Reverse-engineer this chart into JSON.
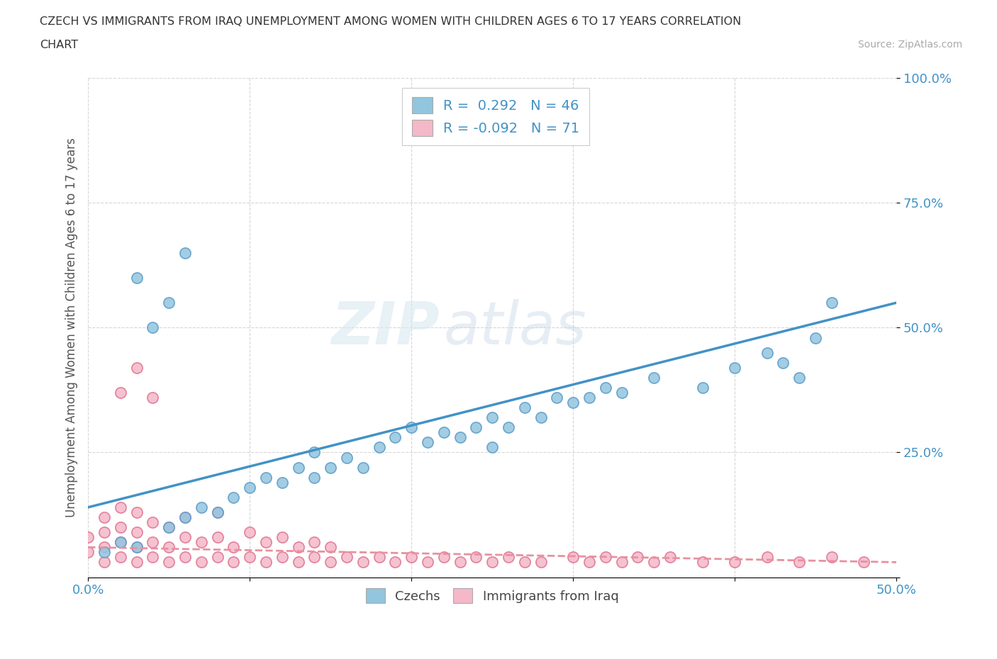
{
  "title_line1": "CZECH VS IMMIGRANTS FROM IRAQ UNEMPLOYMENT AMONG WOMEN WITH CHILDREN AGES 6 TO 17 YEARS CORRELATION",
  "title_line2": "CHART",
  "source_text": "Source: ZipAtlas.com",
  "ylabel": "Unemployment Among Women with Children Ages 6 to 17 years",
  "xlim": [
    0.0,
    0.5
  ],
  "ylim": [
    0.0,
    1.0
  ],
  "legend_r1": "R =  0.292   N = 46",
  "legend_r2": "R = -0.092   N = 71",
  "blue_color": "#92c5de",
  "blue_edge_color": "#5b9bc8",
  "pink_color": "#f4b8c8",
  "pink_edge_color": "#e07090",
  "blue_line_color": "#4292c6",
  "pink_line_color": "#e8919f",
  "watermark_zip": "ZIP",
  "watermark_atlas": "atlas",
  "blue_scatter_x": [
    0.01,
    0.02,
    0.03,
    0.05,
    0.06,
    0.07,
    0.08,
    0.09,
    0.1,
    0.11,
    0.12,
    0.13,
    0.14,
    0.14,
    0.15,
    0.16,
    0.17,
    0.18,
    0.19,
    0.2,
    0.21,
    0.22,
    0.23,
    0.24,
    0.25,
    0.25,
    0.26,
    0.27,
    0.28,
    0.29,
    0.3,
    0.31,
    0.32,
    0.33,
    0.35,
    0.38,
    0.4,
    0.42,
    0.43,
    0.44,
    0.45,
    0.46,
    0.03,
    0.04,
    0.05,
    0.06
  ],
  "blue_scatter_y": [
    0.05,
    0.07,
    0.06,
    0.1,
    0.12,
    0.14,
    0.13,
    0.16,
    0.18,
    0.2,
    0.19,
    0.22,
    0.2,
    0.25,
    0.22,
    0.24,
    0.22,
    0.26,
    0.28,
    0.3,
    0.27,
    0.29,
    0.28,
    0.3,
    0.32,
    0.26,
    0.3,
    0.34,
    0.32,
    0.36,
    0.35,
    0.36,
    0.38,
    0.37,
    0.4,
    0.38,
    0.42,
    0.45,
    0.43,
    0.4,
    0.48,
    0.55,
    0.6,
    0.5,
    0.55,
    0.65
  ],
  "pink_scatter_x": [
    0.0,
    0.0,
    0.01,
    0.01,
    0.01,
    0.01,
    0.02,
    0.02,
    0.02,
    0.02,
    0.03,
    0.03,
    0.03,
    0.03,
    0.04,
    0.04,
    0.04,
    0.05,
    0.05,
    0.05,
    0.06,
    0.06,
    0.06,
    0.07,
    0.07,
    0.08,
    0.08,
    0.08,
    0.09,
    0.09,
    0.1,
    0.1,
    0.11,
    0.11,
    0.12,
    0.12,
    0.13,
    0.13,
    0.14,
    0.14,
    0.15,
    0.15,
    0.16,
    0.17,
    0.18,
    0.19,
    0.2,
    0.21,
    0.22,
    0.23,
    0.24,
    0.25,
    0.26,
    0.27,
    0.28,
    0.3,
    0.31,
    0.32,
    0.33,
    0.34,
    0.35,
    0.36,
    0.38,
    0.4,
    0.42,
    0.44,
    0.46,
    0.48,
    0.02,
    0.03,
    0.04
  ],
  "pink_scatter_y": [
    0.05,
    0.08,
    0.03,
    0.06,
    0.09,
    0.12,
    0.04,
    0.07,
    0.1,
    0.14,
    0.03,
    0.06,
    0.09,
    0.13,
    0.04,
    0.07,
    0.11,
    0.03,
    0.06,
    0.1,
    0.04,
    0.08,
    0.12,
    0.03,
    0.07,
    0.04,
    0.08,
    0.13,
    0.03,
    0.06,
    0.04,
    0.09,
    0.03,
    0.07,
    0.04,
    0.08,
    0.03,
    0.06,
    0.04,
    0.07,
    0.03,
    0.06,
    0.04,
    0.03,
    0.04,
    0.03,
    0.04,
    0.03,
    0.04,
    0.03,
    0.04,
    0.03,
    0.04,
    0.03,
    0.03,
    0.04,
    0.03,
    0.04,
    0.03,
    0.04,
    0.03,
    0.04,
    0.03,
    0.03,
    0.04,
    0.03,
    0.04,
    0.03,
    0.37,
    0.42,
    0.36
  ],
  "blue_line_x": [
    0.0,
    0.5
  ],
  "blue_line_y": [
    0.14,
    0.55
  ],
  "pink_line_x": [
    0.0,
    0.5
  ],
  "pink_line_y": [
    0.06,
    0.03
  ]
}
